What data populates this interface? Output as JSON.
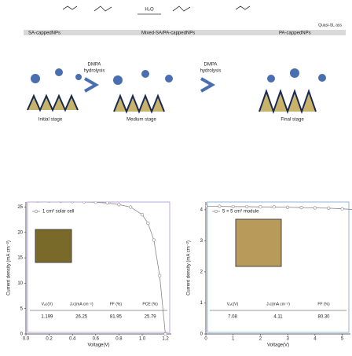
{
  "schematic": {
    "reagent": "H₂O",
    "top_right": "Quasi-SL ass",
    "capped": [
      "SA-cappedNPs",
      "Mixed-SA/PA-cappedNPs",
      "PA-cappedNPs"
    ],
    "step": [
      "DMPA",
      "hydrolysis"
    ],
    "stages": [
      "Initial stage",
      "Medium stage",
      "Final stage"
    ]
  },
  "chart_data": [
    {
      "type": "line",
      "x_label": "Voltage(V)",
      "y_label": "Current density (mA cm⁻²)",
      "legend_label": "1 cm² solar cell",
      "xlim": [
        0,
        1.25
      ],
      "ylim": [
        0,
        26
      ],
      "xticks": [
        {
          "value": 0,
          "label": "0.0"
        },
        0.2,
        0.4,
        0.6,
        0.8,
        {
          "value": 1,
          "label": "1.0"
        },
        1.2
      ],
      "yticks": [
        0,
        5,
        10,
        15,
        20,
        25
      ],
      "x": [
        0,
        0.1,
        0.2,
        0.3,
        0.4,
        0.5,
        0.6,
        0.7,
        0.8,
        0.9,
        1.0,
        1.05,
        1.1,
        1.15,
        1.199
      ],
      "series": [
        {
          "color": "#888888",
          "values": [
            26.25,
            26.22,
            26.2,
            26.15,
            26.1,
            26.05,
            25.95,
            25.8,
            25.5,
            25.0,
            23.5,
            21.8,
            18.5,
            11.5,
            0
          ]
        }
      ],
      "table": {
        "headers": [
          "Vₒc(V)",
          "Jₛc(mA cm⁻²)",
          "FF (%)",
          "PCE (%)"
        ],
        "values": [
          {
            "value": 1.199,
            "label": "1.199"
          },
          26.25,
          81.95,
          25.79
        ]
      }
    },
    {
      "type": "line",
      "x_label": "Voltage(V)",
      "y_label": "Current density (mA cm⁻²)",
      "legend_label": "5 × 5 cm² module",
      "xlim": [
        0,
        5.3
      ],
      "ylim": [
        0,
        4.25
      ],
      "xticks": [
        0,
        1,
        2,
        3,
        4,
        5
      ],
      "yticks": [
        0,
        1,
        2,
        3,
        4
      ],
      "x": [
        0,
        0.5,
        1,
        1.5,
        2,
        2.5,
        3,
        3.5,
        4,
        4.5,
        5,
        5.5
      ],
      "series": [
        {
          "color": "#888888",
          "values": [
            4.11,
            4.11,
            4.1,
            4.1,
            4.09,
            4.09,
            4.08,
            4.07,
            4.06,
            4.05,
            4.03,
            4.0
          ]
        }
      ],
      "table": {
        "headers": [
          "Vₒc(V)",
          "Jₛc(mA cm⁻²)",
          "FF (%)"
        ],
        "values": [
          7.08,
          4.11,
          {
            "value": 80.3,
            "label": "80.30"
          }
        ]
      }
    }
  ]
}
